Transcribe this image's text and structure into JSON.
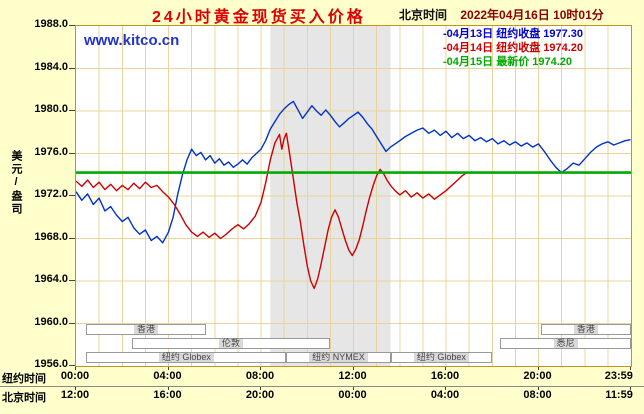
{
  "header": {
    "title": "24小时黄金现货买入价格",
    "clock_label": "北京时间",
    "clock_value": "2022年04月16日 10时01分"
  },
  "watermark": "www.kitco.cn",
  "legend": [
    {
      "label": "-04月13日 纽约收盘 1977.30",
      "color": "#0000CC"
    },
    {
      "label": "-04月14日 纽约收盘 1974.20",
      "color": "#CC0000"
    },
    {
      "label": "-04月15日 最新价 1974.20",
      "color": "#00AA00"
    }
  ],
  "colors": {
    "background": "#FFFFCC",
    "plot_bg": "#FFFFFF",
    "grid": "#E8D49A",
    "border": "#C89020",
    "band": "#E6E6E6",
    "title": "#DD0000",
    "clock": "#8B0000",
    "watermark": "#2233CC"
  },
  "chart_data": {
    "type": "line",
    "title": "24小时黄金现货买入价格",
    "ylabel": "美元/盎司",
    "ylim": [
      1956,
      1988
    ],
    "ytick_step": 4,
    "yticks": [
      "1988.0",
      "1984.0",
      "1980.0",
      "1976.0",
      "1972.0",
      "1968.0",
      "1964.0",
      "1960.0",
      "1956.0"
    ],
    "x_axis": {
      "ny_label": "纽约时间",
      "bj_label": "北京时间",
      "tick_hours": [
        0,
        4,
        8,
        12,
        16,
        20,
        23.98
      ],
      "ny_ticks": [
        "00:00",
        "04:00",
        "08:00",
        "12:00",
        "16:00",
        "20:00",
        "23:59"
      ],
      "bj_ticks": [
        "12:00",
        "16:00",
        "20:00",
        "00:00",
        "04:00",
        "08:00",
        "11:59"
      ]
    },
    "shaded_band_hours": [
      8.4,
      13.6
    ],
    "series": [
      {
        "name": "04月13日 纽约收盘",
        "value": "1977.30",
        "color": "#0033CC",
        "width": 1.4,
        "points": [
          [
            0,
            1972.4
          ],
          [
            0.25,
            1971.6
          ],
          [
            0.5,
            1972.2
          ],
          [
            0.75,
            1971.2
          ],
          [
            1,
            1971.8
          ],
          [
            1.25,
            1970.6
          ],
          [
            1.5,
            1971.0
          ],
          [
            1.75,
            1970.2
          ],
          [
            2,
            1969.6
          ],
          [
            2.25,
            1970.0
          ],
          [
            2.5,
            1969.0
          ],
          [
            2.75,
            1968.4
          ],
          [
            3,
            1968.8
          ],
          [
            3.25,
            1967.8
          ],
          [
            3.5,
            1968.2
          ],
          [
            3.75,
            1967.6
          ],
          [
            4,
            1968.6
          ],
          [
            4.2,
            1970.0
          ],
          [
            4.4,
            1972.2
          ],
          [
            4.6,
            1974.0
          ],
          [
            4.8,
            1975.4
          ],
          [
            5,
            1976.4
          ],
          [
            5.2,
            1975.8
          ],
          [
            5.4,
            1976.1
          ],
          [
            5.6,
            1975.4
          ],
          [
            5.8,
            1975.8
          ],
          [
            6,
            1975.1
          ],
          [
            6.2,
            1975.5
          ],
          [
            6.4,
            1974.9
          ],
          [
            6.6,
            1975.2
          ],
          [
            6.8,
            1974.7
          ],
          [
            7,
            1975.0
          ],
          [
            7.2,
            1975.4
          ],
          [
            7.4,
            1975.0
          ],
          [
            7.6,
            1975.6
          ],
          [
            7.8,
            1976.0
          ],
          [
            8,
            1976.4
          ],
          [
            8.2,
            1977.2
          ],
          [
            8.4,
            1978.3
          ],
          [
            8.6,
            1979.0
          ],
          [
            8.8,
            1979.7
          ],
          [
            9,
            1980.2
          ],
          [
            9.2,
            1980.6
          ],
          [
            9.4,
            1980.9
          ],
          [
            9.6,
            1980.1
          ],
          [
            9.8,
            1979.3
          ],
          [
            10,
            1979.9
          ],
          [
            10.2,
            1980.5
          ],
          [
            10.4,
            1980.0
          ],
          [
            10.6,
            1979.6
          ],
          [
            10.8,
            1980.1
          ],
          [
            11,
            1979.6
          ],
          [
            11.2,
            1979.0
          ],
          [
            11.4,
            1978.5
          ],
          [
            11.6,
            1978.9
          ],
          [
            11.8,
            1979.3
          ],
          [
            12,
            1979.6
          ],
          [
            12.2,
            1979.9
          ],
          [
            12.4,
            1979.4
          ],
          [
            12.6,
            1978.8
          ],
          [
            12.8,
            1978.3
          ],
          [
            13,
            1977.6
          ],
          [
            13.2,
            1976.9
          ],
          [
            13.4,
            1976.2
          ],
          [
            13.6,
            1976.6
          ],
          [
            13.8,
            1976.9
          ],
          [
            14,
            1977.2
          ],
          [
            14.25,
            1977.6
          ],
          [
            14.5,
            1977.9
          ],
          [
            14.75,
            1978.2
          ],
          [
            15,
            1978.4
          ],
          [
            15.25,
            1977.9
          ],
          [
            15.5,
            1978.2
          ],
          [
            15.75,
            1977.7
          ],
          [
            16,
            1978.1
          ],
          [
            16.25,
            1977.5
          ],
          [
            16.5,
            1977.9
          ],
          [
            16.75,
            1977.4
          ],
          [
            17,
            1977.7
          ],
          [
            17.25,
            1977.2
          ],
          [
            17.5,
            1977.5
          ],
          [
            17.75,
            1977.1
          ],
          [
            18,
            1977.4
          ],
          [
            18.25,
            1976.9
          ],
          [
            18.5,
            1977.2
          ],
          [
            18.75,
            1976.8
          ],
          [
            19,
            1977.1
          ],
          [
            19.25,
            1976.7
          ],
          [
            19.5,
            1977.0
          ],
          [
            19.75,
            1976.6
          ],
          [
            20,
            1976.9
          ],
          [
            20.25,
            1976.2
          ],
          [
            20.5,
            1975.4
          ],
          [
            20.75,
            1974.7
          ],
          [
            21,
            1974.2
          ],
          [
            21.25,
            1974.6
          ],
          [
            21.5,
            1975.1
          ],
          [
            21.75,
            1974.9
          ],
          [
            22,
            1975.5
          ],
          [
            22.25,
            1976.1
          ],
          [
            22.5,
            1976.6
          ],
          [
            22.75,
            1976.9
          ],
          [
            23,
            1977.1
          ],
          [
            23.25,
            1976.8
          ],
          [
            23.5,
            1977.0
          ],
          [
            23.75,
            1977.2
          ],
          [
            23.98,
            1977.3
          ]
        ]
      },
      {
        "name": "04月14日 纽约收盘",
        "value": "1974.20",
        "color": "#CC0000",
        "width": 1.4,
        "points": [
          [
            0,
            1973.4
          ],
          [
            0.25,
            1972.9
          ],
          [
            0.5,
            1973.5
          ],
          [
            0.75,
            1972.8
          ],
          [
            1,
            1973.3
          ],
          [
            1.25,
            1972.6
          ],
          [
            1.5,
            1973.1
          ],
          [
            1.75,
            1972.5
          ],
          [
            2,
            1973.0
          ],
          [
            2.25,
            1972.6
          ],
          [
            2.5,
            1973.2
          ],
          [
            2.75,
            1972.7
          ],
          [
            3,
            1973.3
          ],
          [
            3.25,
            1972.8
          ],
          [
            3.5,
            1973.0
          ],
          [
            3.75,
            1972.4
          ],
          [
            4,
            1971.9
          ],
          [
            4.25,
            1971.2
          ],
          [
            4.5,
            1970.3
          ],
          [
            4.75,
            1969.3
          ],
          [
            5,
            1968.6
          ],
          [
            5.25,
            1968.2
          ],
          [
            5.5,
            1968.6
          ],
          [
            5.75,
            1968.1
          ],
          [
            6,
            1968.5
          ],
          [
            6.25,
            1968.0
          ],
          [
            6.5,
            1968.4
          ],
          [
            6.75,
            1968.9
          ],
          [
            7,
            1969.3
          ],
          [
            7.25,
            1968.9
          ],
          [
            7.5,
            1969.4
          ],
          [
            7.75,
            1970.1
          ],
          [
            8,
            1971.4
          ],
          [
            8.2,
            1973.2
          ],
          [
            8.4,
            1975.4
          ],
          [
            8.6,
            1977.0
          ],
          [
            8.8,
            1977.8
          ],
          [
            8.9,
            1976.4
          ],
          [
            9,
            1977.4
          ],
          [
            9.1,
            1977.9
          ],
          [
            9.25,
            1975.8
          ],
          [
            9.4,
            1973.6
          ],
          [
            9.55,
            1971.4
          ],
          [
            9.7,
            1969.6
          ],
          [
            9.85,
            1967.4
          ],
          [
            10,
            1965.4
          ],
          [
            10.15,
            1964.0
          ],
          [
            10.3,
            1963.3
          ],
          [
            10.45,
            1964.2
          ],
          [
            10.6,
            1965.6
          ],
          [
            10.75,
            1967.2
          ],
          [
            10.9,
            1968.8
          ],
          [
            11.05,
            1970.0
          ],
          [
            11.2,
            1970.7
          ],
          [
            11.35,
            1970.0
          ],
          [
            11.5,
            1968.9
          ],
          [
            11.65,
            1967.8
          ],
          [
            11.8,
            1966.9
          ],
          [
            11.95,
            1966.4
          ],
          [
            12.1,
            1967.0
          ],
          [
            12.25,
            1967.9
          ],
          [
            12.4,
            1969.2
          ],
          [
            12.55,
            1970.6
          ],
          [
            12.7,
            1971.9
          ],
          [
            12.85,
            1973.0
          ],
          [
            13,
            1973.9
          ],
          [
            13.15,
            1974.5
          ],
          [
            13.3,
            1974.1
          ],
          [
            13.45,
            1973.5
          ],
          [
            13.6,
            1973.0
          ],
          [
            13.8,
            1972.5
          ],
          [
            14,
            1972.1
          ],
          [
            14.25,
            1972.5
          ],
          [
            14.5,
            1971.9
          ],
          [
            14.75,
            1972.3
          ],
          [
            15,
            1971.8
          ],
          [
            15.25,
            1972.2
          ],
          [
            15.5,
            1971.7
          ],
          [
            15.75,
            1972.1
          ],
          [
            16,
            1972.5
          ],
          [
            16.25,
            1973.0
          ],
          [
            16.5,
            1973.5
          ],
          [
            16.7,
            1973.9
          ],
          [
            16.9,
            1974.2
          ]
        ]
      },
      {
        "name": "04月15日 最新价",
        "value": "1974.20",
        "color": "#00AA00",
        "width": 2.6,
        "points": [
          [
            0,
            1974.2
          ],
          [
            24,
            1974.2
          ]
        ]
      }
    ],
    "sessions": [
      {
        "row": 0,
        "start": 0.45,
        "end": 5.6,
        "label": "香港"
      },
      {
        "row": 0,
        "start": 20.1,
        "end": 24,
        "label": "香港"
      },
      {
        "row": 1,
        "start": 2.4,
        "end": 11,
        "label": "伦敦"
      },
      {
        "row": 1,
        "start": 18.35,
        "end": 24,
        "label": "悉尼"
      },
      {
        "row": 2,
        "start": 0.45,
        "end": 9.1,
        "label": "纽约 Globex"
      },
      {
        "row": 2,
        "start": 9.1,
        "end": 13.6,
        "label": "纽约 NYMEX"
      },
      {
        "row": 2,
        "start": 13.6,
        "end": 18,
        "label": "纽约 Globex"
      }
    ]
  }
}
